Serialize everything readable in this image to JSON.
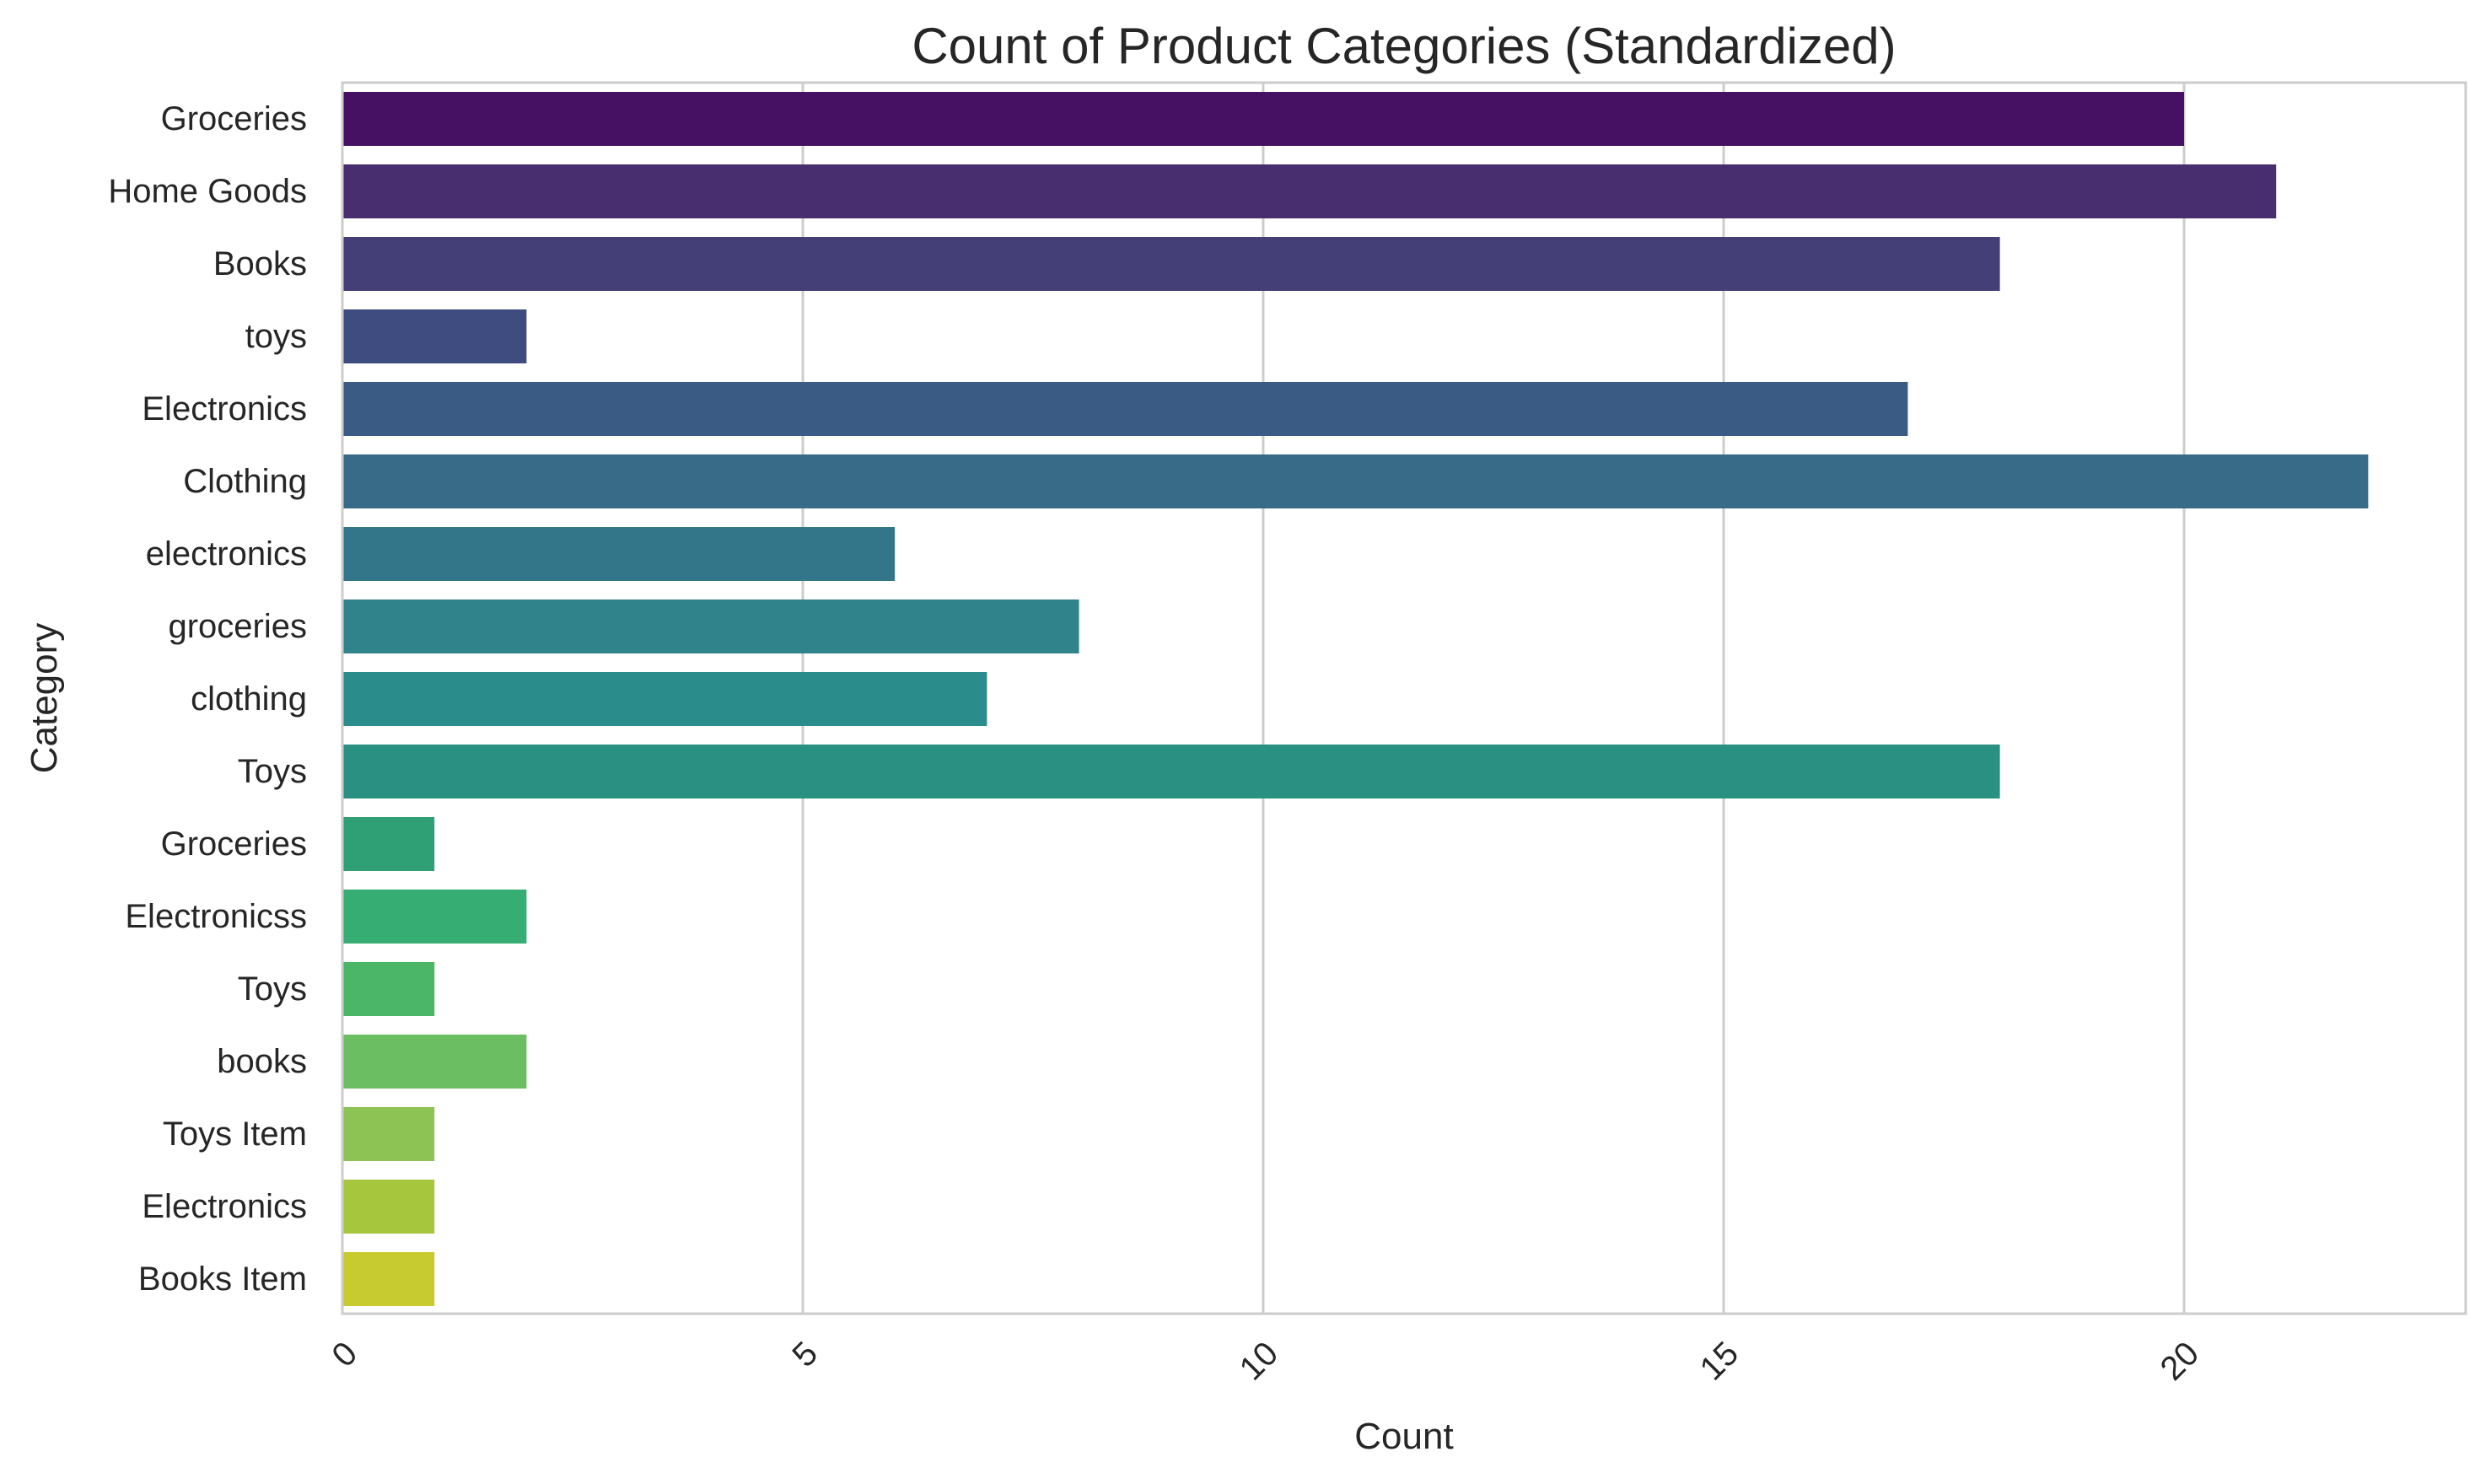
{
  "chart_data": {
    "type": "bar",
    "orientation": "horizontal",
    "title": "Count of Product Categories (Standardized)",
    "xlabel": "Count",
    "ylabel": "Category",
    "xlim": [
      0,
      23
    ],
    "x_ticks": [
      0,
      5,
      10,
      15,
      20
    ],
    "grid": "vertical",
    "palette": "viridis",
    "categories": [
      "Groceries",
      "Home Goods",
      "Books",
      "toys",
      "Electronics",
      "Clothing",
      "electronics",
      "groceries",
      "clothing",
      "Toys",
      "Groceries ",
      "Electronicss",
      "Toys ",
      "books",
      "Toys Item",
      "Electronics ",
      "Books Item"
    ],
    "values": [
      20,
      21,
      18,
      2,
      17,
      22,
      6,
      8,
      7,
      18,
      1,
      2,
      1,
      2,
      1,
      1,
      1
    ],
    "colors": [
      "#471163",
      "#482e6e",
      "#453f77",
      "#3f4c7f",
      "#3a5c84",
      "#376b87",
      "#33768a",
      "#31838b",
      "#2a8d8b",
      "#2a9082",
      "#2f9f76",
      "#36ad72",
      "#4cb668",
      "#6cbe63",
      "#8cc354",
      "#a6c63e",
      "#c8cb2f"
    ]
  }
}
